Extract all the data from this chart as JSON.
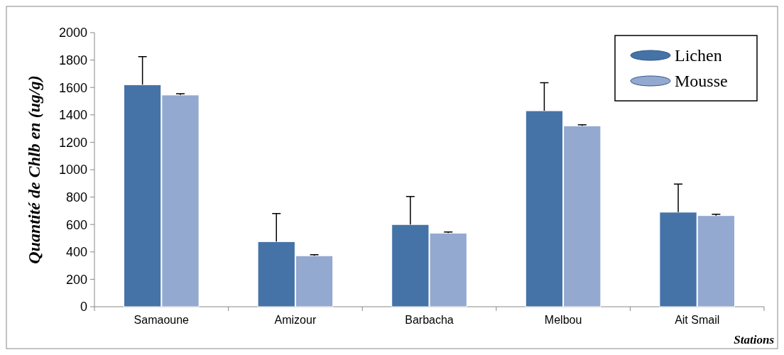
{
  "chart_data": {
    "type": "bar",
    "ylabel": "Quantité de Chlb en (ug/g)",
    "xlabel": "Stations",
    "categories": [
      "Samaoune",
      "Amizour",
      "Barbacha",
      "Melbou",
      "Ait Smail"
    ],
    "series": [
      {
        "name": "Lichen",
        "color": "#4573a7",
        "values": [
          1620,
          475,
          600,
          1430,
          690
        ],
        "errors": [
          [
            1620,
            1825
          ],
          [
            475,
            680
          ],
          [
            600,
            805
          ],
          [
            1430,
            1635
          ],
          [
            690,
            895
          ]
        ]
      },
      {
        "name": "Mousse",
        "color": "#94a9d0",
        "values": [
          1545,
          372,
          537,
          1320,
          665
        ],
        "errors": [
          [
            1545,
            1555
          ],
          [
            372,
            380
          ],
          [
            537,
            545
          ],
          [
            1320,
            1328
          ],
          [
            665,
            675
          ]
        ]
      }
    ],
    "ylim": [
      0,
      2000
    ],
    "yticks": [
      0,
      200,
      400,
      600,
      800,
      1000,
      1200,
      1400,
      1600,
      1800,
      2000
    ],
    "legend": "top right"
  }
}
